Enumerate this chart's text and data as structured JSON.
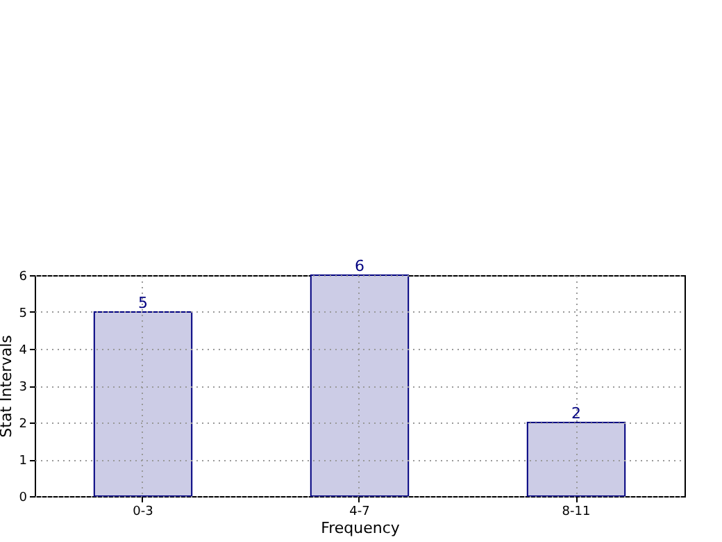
{
  "chart_data": {
    "type": "bar",
    "xlabel": "Frequency",
    "ylabel": "Stat Intervals",
    "categories": [
      "0-3",
      "4-7",
      "8-11"
    ],
    "values": [
      5,
      6,
      2
    ],
    "color": "#cccce6",
    "ylim": [
      0,
      6
    ],
    "yticks": [
      0,
      1,
      2,
      3,
      4,
      5,
      6
    ],
    "grid": true,
    "data_labels": true
  }
}
